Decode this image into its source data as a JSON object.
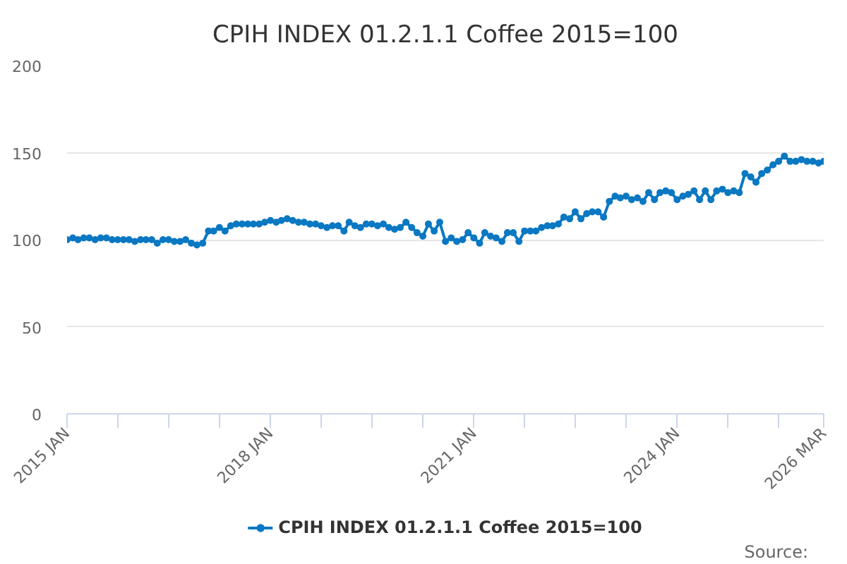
{
  "chart_data": {
    "type": "line",
    "title": "CPIH INDEX 01.2.1.1 Coffee 2015=100",
    "x": [
      "2015-01",
      "2015-02",
      "2015-03",
      "2015-04",
      "2015-05",
      "2015-06",
      "2015-07",
      "2015-08",
      "2015-09",
      "2015-10",
      "2015-11",
      "2015-12",
      "2016-01",
      "2016-02",
      "2016-03",
      "2016-04",
      "2016-05",
      "2016-06",
      "2016-07",
      "2016-08",
      "2016-09",
      "2016-10",
      "2016-11",
      "2016-12",
      "2017-01",
      "2017-02",
      "2017-03",
      "2017-04",
      "2017-05",
      "2017-06",
      "2017-07",
      "2017-08",
      "2017-09",
      "2017-10",
      "2017-11",
      "2017-12",
      "2018-01",
      "2018-02",
      "2018-03",
      "2018-04",
      "2018-05",
      "2018-06",
      "2018-07",
      "2018-08",
      "2018-09",
      "2018-10",
      "2018-11",
      "2018-12",
      "2019-01",
      "2019-02",
      "2019-03",
      "2019-04",
      "2019-05",
      "2019-06",
      "2019-07",
      "2019-08",
      "2019-09",
      "2019-10",
      "2019-11",
      "2019-12",
      "2020-01",
      "2020-02",
      "2020-03",
      "2020-04",
      "2020-05",
      "2020-06",
      "2020-07",
      "2020-08",
      "2020-09",
      "2020-10",
      "2020-11",
      "2020-12",
      "2021-01",
      "2021-02",
      "2021-03",
      "2021-04",
      "2021-05",
      "2021-06",
      "2021-07",
      "2021-08",
      "2021-09",
      "2021-10",
      "2021-11",
      "2021-12",
      "2022-01",
      "2022-02",
      "2022-03",
      "2022-04",
      "2022-05",
      "2022-06",
      "2022-07",
      "2022-08",
      "2022-09",
      "2022-10",
      "2022-11",
      "2022-12",
      "2023-01",
      "2023-02",
      "2023-03",
      "2023-04",
      "2023-05",
      "2023-06",
      "2023-07",
      "2023-08",
      "2023-09",
      "2023-10",
      "2023-11",
      "2023-12",
      "2024-01",
      "2024-02",
      "2024-03",
      "2024-04",
      "2024-05",
      "2024-06",
      "2024-07",
      "2024-08",
      "2024-09",
      "2024-10",
      "2024-11",
      "2024-12",
      "2025-01",
      "2025-02",
      "2025-03",
      "2025-04",
      "2025-05",
      "2025-06",
      "2025-07",
      "2025-08",
      "2025-09",
      "2025-10",
      "2025-11",
      "2025-12",
      "2026-01",
      "2026-02",
      "2026-03"
    ],
    "series": [
      {
        "name": "CPIH INDEX 01.2.1.1 Coffee 2015=100",
        "color": "#0a78c2",
        "values": [
          100,
          101,
          100,
          101,
          101,
          100,
          101,
          101,
          100,
          100,
          100,
          100,
          99,
          100,
          100,
          100,
          98,
          100,
          100,
          99,
          99,
          100,
          98,
          97,
          98,
          105,
          105,
          107,
          105,
          108,
          109,
          109,
          109,
          109,
          109,
          110,
          111,
          110,
          111,
          112,
          111,
          110,
          110,
          109,
          109,
          108,
          107,
          108,
          108,
          105,
          110,
          108,
          107,
          109,
          109,
          108,
          109,
          107,
          106,
          107,
          110,
          107,
          104,
          102,
          109,
          105,
          110,
          99,
          101,
          99,
          100,
          104,
          101,
          98,
          104,
          102,
          101,
          99,
          104,
          104,
          99,
          105,
          105,
          105,
          107,
          108,
          108,
          109,
          113,
          112,
          116,
          112,
          115,
          116,
          116,
          113,
          122,
          125,
          124,
          125,
          123,
          124,
          122,
          127,
          123,
          127,
          128,
          127,
          123,
          125,
          126,
          128,
          123,
          128,
          123,
          128,
          129,
          127,
          128,
          127,
          138,
          136,
          133,
          138,
          140,
          143,
          145,
          148,
          145,
          145,
          146,
          145,
          145,
          144,
          145
        ]
      }
    ],
    "xlim": [
      "2015-01",
      "2026-03"
    ],
    "xticks": [
      {
        "value": "2015-01",
        "label": "2015 JAN"
      },
      {
        "value": "2015-10",
        "label": null
      },
      {
        "value": "2016-07",
        "label": null
      },
      {
        "value": "2017-04",
        "label": null
      },
      {
        "value": "2018-01",
        "label": "2018 JAN"
      },
      {
        "value": "2018-10",
        "label": null
      },
      {
        "value": "2019-07",
        "label": null
      },
      {
        "value": "2020-04",
        "label": null
      },
      {
        "value": "2021-01",
        "label": "2021 JAN"
      },
      {
        "value": "2021-10",
        "label": null
      },
      {
        "value": "2022-07",
        "label": null
      },
      {
        "value": "2023-04",
        "label": null
      },
      {
        "value": "2024-01",
        "label": "2024 JAN"
      },
      {
        "value": "2024-10",
        "label": null
      },
      {
        "value": "2025-07",
        "label": null
      },
      {
        "value": "2026-03",
        "label": "2026 MAR"
      }
    ],
    "ylim": [
      0,
      200
    ],
    "yticks": [
      0,
      50,
      100,
      150,
      200
    ],
    "grid": "y",
    "legend": "bottom",
    "marker": "circle",
    "annotations": [
      "Source:"
    ]
  }
}
